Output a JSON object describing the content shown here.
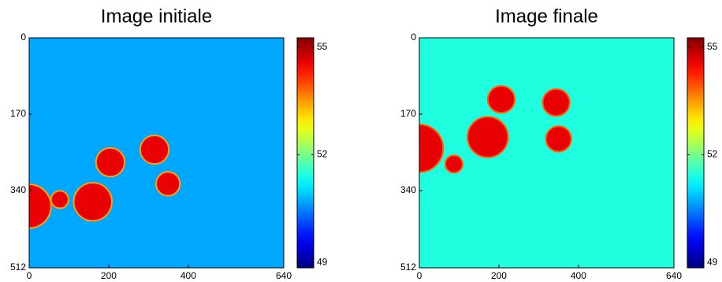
{
  "chart_data": [
    {
      "type": "image",
      "title": "Image initiale",
      "colormap": "jet",
      "xlim": [
        0,
        640
      ],
      "ylim": [
        512,
        0
      ],
      "xticks": [
        0,
        200,
        400,
        640
      ],
      "yticks": [
        0,
        170,
        340,
        512
      ],
      "clim": [
        48.85,
        55.26
      ],
      "cticks": [
        49,
        52,
        55
      ],
      "background": 50.7,
      "spots": [
        {
          "x": 0,
          "y": 375,
          "r": 55,
          "value": 54.6
        },
        {
          "x": 77,
          "y": 360,
          "r": 22,
          "value": 54.6
        },
        {
          "x": 160,
          "y": 365,
          "r": 48,
          "value": 54.6
        },
        {
          "x": 204,
          "y": 277,
          "r": 36,
          "value": 54.6
        },
        {
          "x": 315,
          "y": 249,
          "r": 36,
          "value": 54.6
        },
        {
          "x": 349,
          "y": 325,
          "r": 30,
          "value": 54.6
        }
      ]
    },
    {
      "type": "image",
      "title": "Image finale",
      "colormap": "jet",
      "xlim": [
        0,
        640
      ],
      "ylim": [
        512,
        0
      ],
      "xticks": [
        0,
        200,
        400,
        640
      ],
      "yticks": [
        0,
        170,
        340,
        512
      ],
      "clim": [
        48.85,
        55.26
      ],
      "cticks": [
        49,
        52,
        55
      ],
      "background": 51.45,
      "spots": [
        {
          "x": 0,
          "y": 246,
          "r": 60,
          "value": 54.6
        },
        {
          "x": 87,
          "y": 281,
          "r": 22,
          "value": 54.6
        },
        {
          "x": 172,
          "y": 221,
          "r": 51,
          "value": 54.6
        },
        {
          "x": 206,
          "y": 137,
          "r": 34,
          "value": 54.6
        },
        {
          "x": 344,
          "y": 144,
          "r": 34,
          "value": 54.6
        },
        {
          "x": 350,
          "y": 225,
          "r": 32,
          "value": 54.6
        }
      ]
    }
  ]
}
